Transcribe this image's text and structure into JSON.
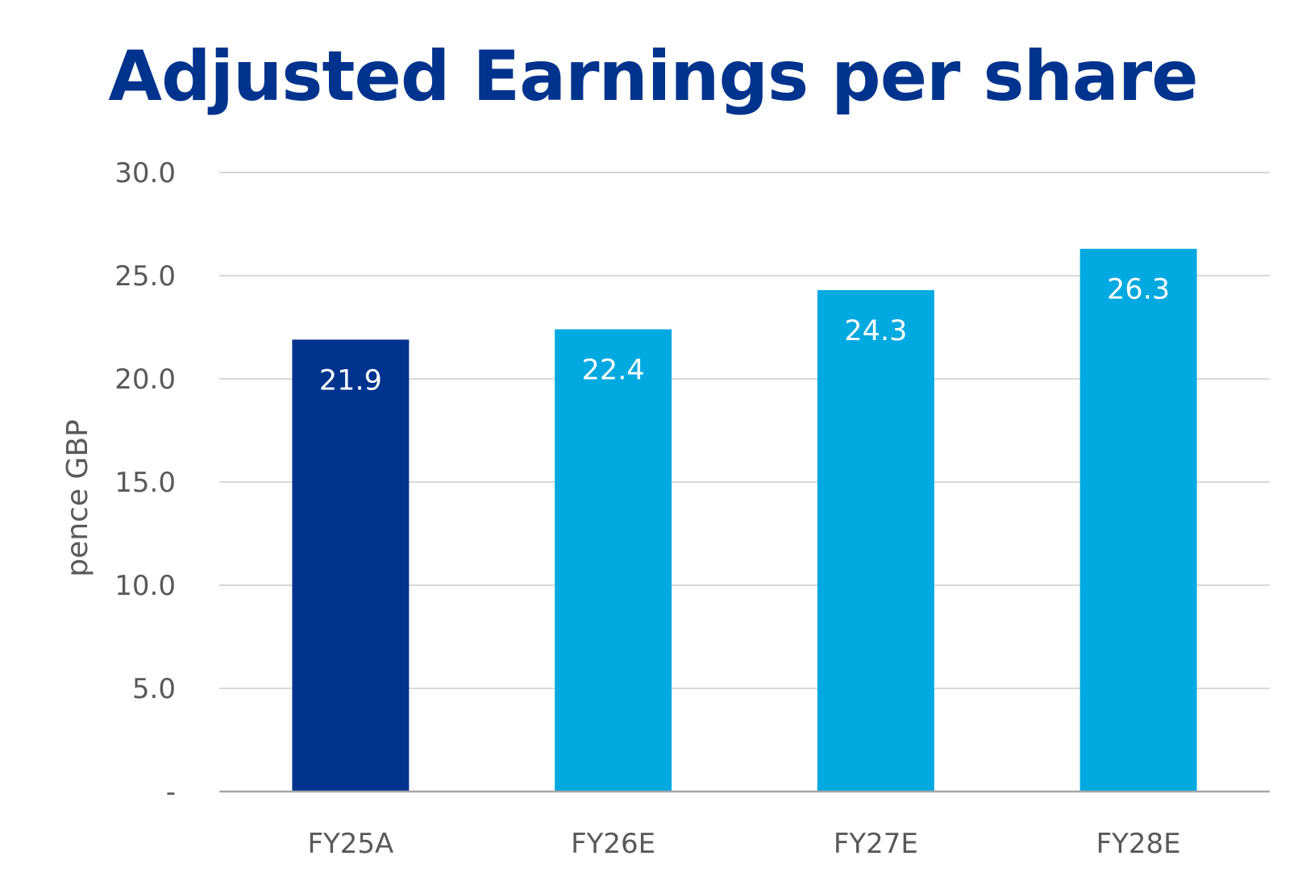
{
  "chart_data": {
    "type": "bar",
    "title": "Adjusted Earnings per share",
    "ylabel": "pence GBP",
    "xlabel": "",
    "categories": [
      "FY25A",
      "FY26E",
      "FY27E",
      "FY28E"
    ],
    "values": [
      21.9,
      22.4,
      24.3,
      26.3
    ],
    "data_labels": [
      "21.9",
      "22.4",
      "24.3",
      "26.3"
    ],
    "bar_colors": [
      "#00338d",
      "#00a9e0",
      "#00a9e0",
      "#00a9e0"
    ],
    "ylim": [
      0,
      30
    ],
    "yticks": [
      0,
      5,
      10,
      15,
      20,
      25,
      30
    ],
    "ytick_labels": [
      "-",
      "5.0",
      "10.0",
      "15.0",
      "20.0",
      "25.0",
      "30.0"
    ],
    "grid": true,
    "legend": "none"
  },
  "colors": {
    "title": "#00338d",
    "gridline": "#d9d9d9",
    "axis_line": "#a6a6a6",
    "label_text": "#595959"
  }
}
